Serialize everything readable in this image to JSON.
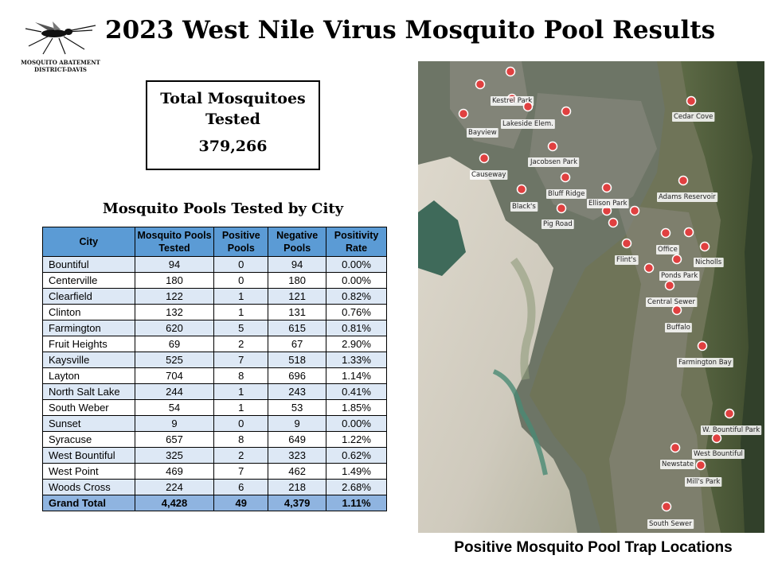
{
  "logo": {
    "icon": "mosquito-icon",
    "line1": "MOSQUITO ABATEMENT",
    "line2": "DISTRICT-DAVIS"
  },
  "title": "2023 West Nile Virus Mosquito Pool Results",
  "total": {
    "label": "Total Mosquitoes Tested",
    "value": "379,266"
  },
  "table": {
    "title": "Mosquito Pools Tested by City",
    "headers": [
      "City",
      "Mosquito Pools Tested",
      "Positive Pools",
      "Negative Pools",
      "Positivity Rate"
    ],
    "rows": [
      [
        "Bountiful",
        "94",
        "0",
        "94",
        "0.00%"
      ],
      [
        "Centerville",
        "180",
        "0",
        "180",
        "0.00%"
      ],
      [
        "Clearfield",
        "122",
        "1",
        "121",
        "0.82%"
      ],
      [
        "Clinton",
        "132",
        "1",
        "131",
        "0.76%"
      ],
      [
        "Farmington",
        "620",
        "5",
        "615",
        "0.81%"
      ],
      [
        "Fruit Heights",
        "69",
        "2",
        "67",
        "2.90%"
      ],
      [
        "Kaysville",
        "525",
        "7",
        "518",
        "1.33%"
      ],
      [
        "Layton",
        "704",
        "8",
        "696",
        "1.14%"
      ],
      [
        "North Salt Lake",
        "244",
        "1",
        "243",
        "0.41%"
      ],
      [
        "South Weber",
        "54",
        "1",
        "53",
        "1.85%"
      ],
      [
        "Sunset",
        "9",
        "0",
        "9",
        "0.00%"
      ],
      [
        "Syracuse",
        "657",
        "8",
        "649",
        "1.22%"
      ],
      [
        "West Bountiful",
        "325",
        "2",
        "323",
        "0.62%"
      ],
      [
        "West Point",
        "469",
        "7",
        "462",
        "1.49%"
      ],
      [
        "Woods Cross",
        "224",
        "6",
        "218",
        "2.68%"
      ]
    ],
    "total": [
      "Grand Total",
      "4,428",
      "49",
      "4,379",
      "1.11%"
    ]
  },
  "map": {
    "caption": "Positive Mosquito Pool Trap Locations",
    "marker_color": "#e04040",
    "labels": [
      "Kestrel Park",
      "Lakeside Elem.",
      "Bayview",
      "Cedar Cove",
      "Jacobsen Park",
      "Causeway",
      "Bluff Ridge",
      "Black's",
      "Ellison Park",
      "Adams Reservoir",
      "Pig Road",
      "Office",
      "Flint's",
      "Nicholls",
      "Ponds Park",
      "Central Sewer",
      "Buffalo",
      "Farmington Bay",
      "W. Bountiful Park",
      "West Bountiful",
      "Newstate",
      "Mill's Park",
      "South Sewer"
    ]
  }
}
